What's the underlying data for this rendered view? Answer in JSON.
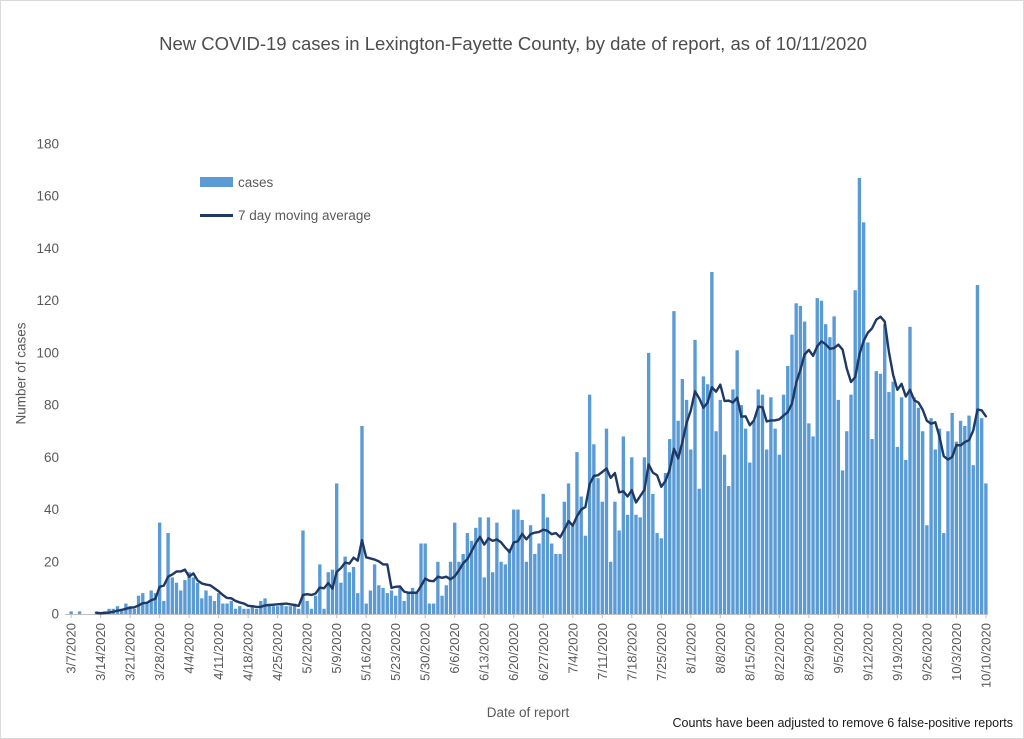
{
  "chart": {
    "title": "New COVID-19 cases in Lexington-Fayette County, by date of report, as of 10/11/2020",
    "y_axis_title": "Number of cases",
    "x_axis_title": "Date of report",
    "footnote": "Counts have been adjusted to remove 6 false-positive reports",
    "legend": {
      "bar_label": "cases",
      "line_label": "7 day moving average"
    },
    "colors": {
      "bar": "#5B9BD5",
      "line": "#1F3864",
      "axis": "#BFBFBF",
      "tick_text": "#595959"
    }
  },
  "chart_data": {
    "type": "bar",
    "title": "New COVID-19 cases in Lexington-Fayette County, by date of report, as of 10/11/2020",
    "xlabel": "Date of report",
    "ylabel": "Number of cases",
    "ylim": [
      0,
      180
    ],
    "y_ticks": [
      0,
      20,
      40,
      60,
      80,
      100,
      120,
      140,
      160,
      180
    ],
    "x_start_date": "3/7/2020",
    "x_end_date": "10/10/2020",
    "x_frequency": "daily",
    "x_tick_labels": [
      "3/7/2020",
      "3/14/2020",
      "3/21/2020",
      "3/28/2020",
      "4/4/2020",
      "4/11/2020",
      "4/18/2020",
      "4/25/2020",
      "5/2/2020",
      "5/9/2020",
      "5/16/2020",
      "5/23/2020",
      "5/30/2020",
      "6/6/2020",
      "6/13/2020",
      "6/20/2020",
      "6/27/2020",
      "7/4/2020",
      "7/11/2020",
      "7/18/2020",
      "7/25/2020",
      "8/1/2020",
      "8/8/2020",
      "8/15/2020",
      "8/22/2020",
      "8/29/2020",
      "9/5/2020",
      "9/12/2020",
      "9/19/2020",
      "9/26/2020",
      "10/3/2020",
      "10/10/2020"
    ],
    "legend_position": "top-left-inside",
    "grid": false,
    "series": [
      {
        "name": "cases",
        "type": "bar",
        "color": "#5B9BD5",
        "values": [
          1,
          0,
          1,
          0,
          0,
          0,
          1,
          0,
          1,
          2,
          2,
          3,
          2,
          4,
          3,
          2,
          7,
          8,
          4,
          9,
          8,
          35,
          5,
          31,
          14,
          12,
          9,
          13,
          16,
          14,
          12,
          6,
          9,
          7,
          5,
          8,
          4,
          4,
          5,
          2,
          3,
          2,
          2,
          3,
          2,
          5,
          6,
          4,
          3,
          3,
          4,
          3,
          3,
          4,
          2,
          32,
          5,
          2,
          7,
          19,
          2,
          16,
          17,
          50,
          12,
          22,
          16,
          18,
          8,
          72,
          4,
          9,
          19,
          11,
          10,
          8,
          9,
          7,
          10,
          5,
          8,
          10,
          8,
          27,
          27,
          4,
          4,
          20,
          7,
          11,
          20,
          35,
          20,
          23,
          31,
          28,
          33,
          37,
          14,
          37,
          16,
          35,
          20,
          19,
          25,
          40,
          40,
          36,
          20,
          34,
          23,
          27,
          46,
          37,
          27,
          23,
          23,
          43,
          50,
          34,
          62,
          45,
          30,
          84,
          65,
          52,
          43,
          71,
          20,
          43,
          32,
          68,
          38,
          60,
          38,
          37,
          60,
          100,
          46,
          31,
          29,
          54,
          67,
          116,
          74,
          90,
          82,
          63,
          105,
          48,
          91,
          88,
          131,
          70,
          82,
          61,
          49,
          86,
          101,
          80,
          71,
          58,
          74,
          86,
          84,
          63,
          83,
          71,
          61,
          84,
          95,
          107,
          119,
          118,
          112,
          73,
          68,
          121,
          120,
          111,
          106,
          114,
          82,
          55,
          70,
          84,
          124,
          167,
          150,
          104,
          67,
          93,
          92,
          111,
          85,
          89,
          64,
          83,
          59,
          110,
          83,
          79,
          70,
          34,
          75,
          63,
          71,
          31,
          70,
          77,
          66,
          74,
          72,
          76,
          57,
          126,
          75,
          50
        ]
      },
      {
        "name": "7 day moving average",
        "type": "line",
        "color": "#1F3864",
        "derived": "trailing 7-day mean of cases series"
      }
    ]
  }
}
